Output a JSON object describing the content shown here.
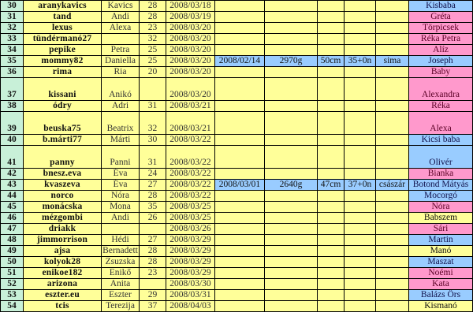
{
  "colors": {
    "number": "#c8f0d8",
    "cell": "#ffff99",
    "boy": "#99ccff",
    "girl": "#ff99cc"
  },
  "rows": [
    {
      "n": "30",
      "user": "aranykavics",
      "name": "Kavics",
      "age": "28",
      "date": "2008/03/18",
      "baby": "Kisbaba",
      "gender": "boy"
    },
    {
      "n": "31",
      "user": "tand",
      "name": "Andi",
      "age": "28",
      "date": "2008/03/19",
      "baby": "Gréta",
      "gender": "girl"
    },
    {
      "n": "32",
      "user": "lexus",
      "name": "Alexa",
      "age": "23",
      "date": "2008/03/20",
      "baby": "Törpicsek",
      "gender": "girl"
    },
    {
      "n": "33",
      "user": "tündérmanó27",
      "name": "",
      "age": "32",
      "date": "2008/03/20",
      "baby": "Réka Petra",
      "gender": "girl"
    },
    {
      "n": "34",
      "user": "pepike",
      "name": "Petra",
      "age": "25",
      "date": "2008/03/20",
      "baby": "Alíz",
      "gender": "girl"
    },
    {
      "n": "35",
      "user": "mommy82",
      "name": "Daniella",
      "age": "25",
      "date": "2008/03/20",
      "birth": "2008/02/14",
      "weight": "2970g",
      "length": "50cm",
      "week": "35+0n",
      "type": "sima",
      "baby": "Joseph",
      "gender": "boy"
    },
    {
      "n": "36",
      "user": "rima",
      "name": "Ria",
      "age": "20",
      "date": "2008/03/20",
      "baby": "Baby",
      "gender": "girl"
    },
    {
      "n": "37",
      "user": "kissani",
      "name": "Anikó",
      "age": "",
      "date": "2008/03/20",
      "baby": "Alexandra",
      "gender": "girl",
      "tall": true
    },
    {
      "n": "38",
      "user": "ódry",
      "name": "Adri",
      "age": "31",
      "date": "2008/03/21",
      "baby": "Réka",
      "gender": "girl"
    },
    {
      "n": "39",
      "user": "beuska75",
      "name": "Beatrix",
      "age": "32",
      "date": "2008/03/21",
      "baby": "Alexa",
      "gender": "girl",
      "tall": true
    },
    {
      "n": "40",
      "user": "b.márti77",
      "name": "Márti",
      "age": "30",
      "date": "2008/03/22",
      "baby": "Kicsi baba",
      "gender": "boy"
    },
    {
      "n": "41",
      "user": "panny",
      "name": "Panni",
      "age": "31",
      "date": "2008/03/22",
      "baby": "Olivér",
      "gender": "boy",
      "tall": true
    },
    {
      "n": "42",
      "user": "bnesz.eva",
      "name": "Éva",
      "age": "24",
      "date": "2008/03/22",
      "baby": "Bianka",
      "gender": "girl"
    },
    {
      "n": "43",
      "user": "kvaszeva",
      "name": "Éva",
      "age": "27",
      "date": "2008/03/22",
      "birth": "2008/03/01",
      "weight": "2640g",
      "length": "47cm",
      "week": "37+0n",
      "type": "császár",
      "baby": "Botond Mátyás",
      "gender": "boy"
    },
    {
      "n": "44",
      "user": "norco",
      "name": "Nóra",
      "age": "28",
      "date": "2008/03/22",
      "baby": "Mocorgó",
      "gender": "boy"
    },
    {
      "n": "45",
      "user": "monácska",
      "name": "Mona",
      "age": "35",
      "date": "2008/03/25",
      "baby": "Nóra",
      "gender": "girl"
    },
    {
      "n": "46",
      "user": "mézgombi",
      "name": "Andi",
      "age": "26",
      "date": "2008/03/25",
      "baby": "Babszem",
      "gender": "unknown"
    },
    {
      "n": "47",
      "user": "driakk",
      "name": "",
      "age": "",
      "date": "2008/03/26",
      "baby": "Sári",
      "gender": "girl"
    },
    {
      "n": "48",
      "user": "jimmorrison",
      "name": "Hédi",
      "age": "27",
      "date": "2008/03/29",
      "baby": "Martin",
      "gender": "boy"
    },
    {
      "n": "49",
      "user": "ajsa",
      "name": "Bernadett",
      "age": "28",
      "date": "2008/03/29",
      "baby": "Manó",
      "gender": "unknown"
    },
    {
      "n": "50",
      "user": "kolyok28",
      "name": "Zsuzska",
      "age": "28",
      "date": "2008/03/29",
      "baby": "Maszat",
      "gender": "boy"
    },
    {
      "n": "51",
      "user": "enikoe182",
      "name": "Enikő",
      "age": "23",
      "date": "2008/03/29",
      "baby": "Noémi",
      "gender": "girl"
    },
    {
      "n": "52",
      "user": "arizona",
      "name": "Anita",
      "age": "",
      "date": "2008/03/30",
      "baby": "Kata",
      "gender": "girl"
    },
    {
      "n": "53",
      "user": "eszter.eu",
      "name": "Eszter",
      "age": "29",
      "date": "2008/03/31",
      "baby": "Balázs Örs",
      "gender": "boy"
    },
    {
      "n": "54",
      "user": "tcis",
      "name": "Terezija",
      "age": "37",
      "date": "2008/04/03",
      "baby": "Kismanó",
      "gender": "unknown"
    }
  ]
}
